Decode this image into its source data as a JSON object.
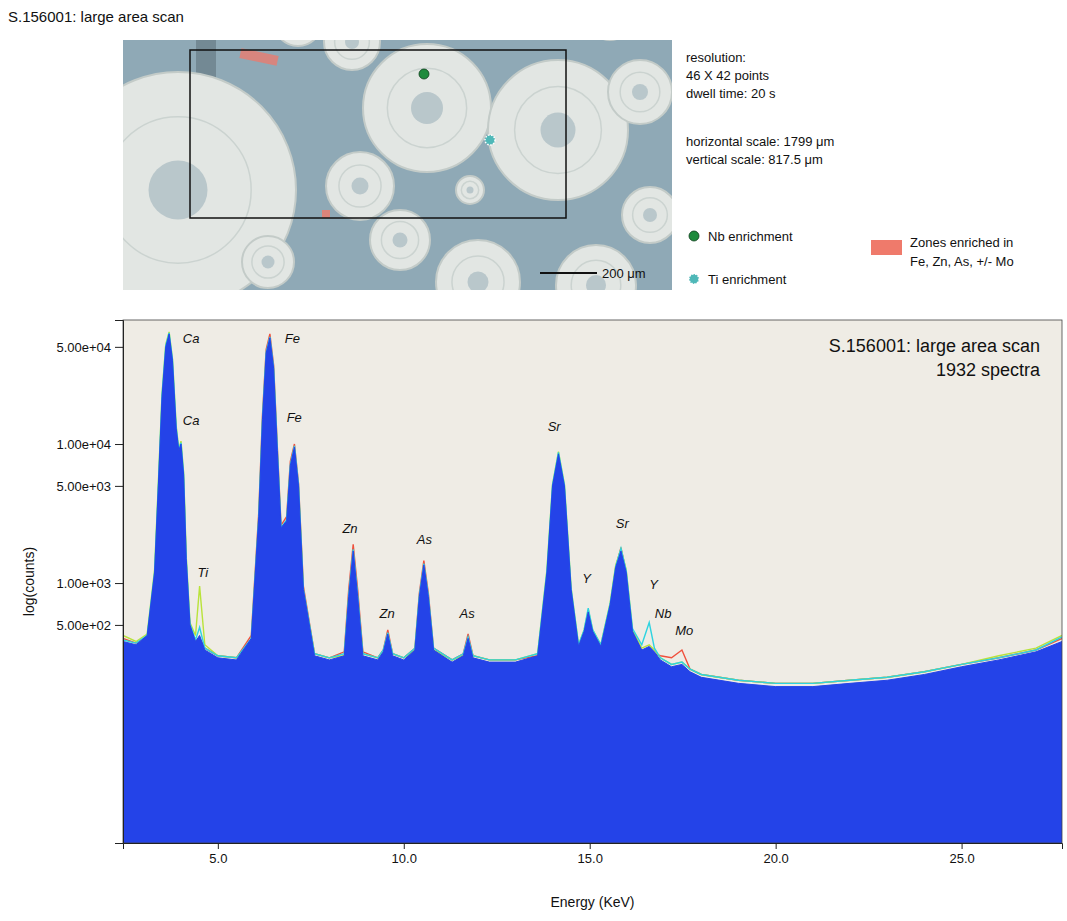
{
  "image_panel": {
    "title": "S.156001: large area scan",
    "info": [
      "resolution:",
      "46 X 42 points",
      "dwell time: 20 s"
    ],
    "scales": [
      "horizontal scale: 1799 μm",
      "vertical scale: 817.5 μm"
    ],
    "legend": [
      {
        "label": "Nb enrichment",
        "color": "#1e8a3c",
        "marker": "dot"
      },
      {
        "label": "Ti enrichment",
        "color": "#4fb8b8",
        "marker": "dotted-circle"
      }
    ],
    "zones": {
      "label": [
        "Zones enriched in",
        "Fe, Zn, As, +/- Mo"
      ],
      "color": "#ef7a6b"
    },
    "scale_bar": "200 μm"
  },
  "chart_data": {
    "type": "line",
    "log": "y",
    "grid": false,
    "title": "S.156001: large area scan",
    "subtitle": "1932 spectra",
    "x_label": "Energy (KeV)",
    "y_label": "log(counts)",
    "xlim": [
      2.45,
      27.7
    ],
    "ylim": [
      13.5,
      78000
    ],
    "xticks": [
      {
        "value": 5,
        "label": "5.0"
      },
      {
        "value": 10,
        "label": "10.0"
      },
      {
        "value": 15,
        "label": "15.0"
      },
      {
        "value": 20,
        "label": "20.0"
      },
      {
        "value": 25,
        "label": "25.0"
      }
    ],
    "yticks": [
      {
        "value": 500,
        "label": "5.00e+02"
      },
      {
        "value": 1000,
        "label": "1.00e+03"
      },
      {
        "value": 5000,
        "label": "5.00e+03"
      },
      {
        "value": 10000,
        "label": "1.00e+04"
      },
      {
        "value": 50000,
        "label": "5.00e+04"
      }
    ],
    "x": [
      2.45,
      2.8,
      3.1,
      3.3,
      3.4,
      3.5,
      3.6,
      3.69,
      3.78,
      3.88,
      3.95,
      4.01,
      4.08,
      4.15,
      4.25,
      4.4,
      4.51,
      4.65,
      5.0,
      5.5,
      5.9,
      6.1,
      6.2,
      6.3,
      6.4,
      6.5,
      6.6,
      6.7,
      6.85,
      6.95,
      7.06,
      7.17,
      7.3,
      7.6,
      8.0,
      8.4,
      8.52,
      8.64,
      8.76,
      8.9,
      9.3,
      9.45,
      9.57,
      9.7,
      10.0,
      10.3,
      10.42,
      10.54,
      10.66,
      10.8,
      11.3,
      11.6,
      11.73,
      11.86,
      12.3,
      13.0,
      13.6,
      13.85,
      14.0,
      14.16,
      14.32,
      14.5,
      14.7,
      14.85,
      14.96,
      15.08,
      15.3,
      15.55,
      15.7,
      15.84,
      15.98,
      16.15,
      16.4,
      16.6,
      16.74,
      16.9,
      17.2,
      17.48,
      17.7,
      18.0,
      19.0,
      20.0,
      21.0,
      22.0,
      23.0,
      24.0,
      25.0,
      26.0,
      27.0,
      27.7
    ],
    "series": [
      {
        "type": "line",
        "color": "#f0503c",
        "values": [
          400,
          370,
          410,
          1100,
          4500,
          20000,
          46000,
          56000,
          36000,
          12000,
          8500,
          9500,
          5500,
          1400,
          480,
          380,
          400,
          340,
          300,
          290,
          420,
          3200,
          16000,
          48000,
          62000,
          37000,
          9500,
          2600,
          3000,
          7500,
          10000,
          5200,
          950,
          310,
          290,
          320,
          900,
          1900,
          900,
          320,
          290,
          330,
          460,
          310,
          290,
          340,
          850,
          1450,
          850,
          340,
          280,
          310,
          430,
          300,
          280,
          280,
          300,
          1100,
          4600,
          8000,
          4700,
          850,
          340,
          430,
          600,
          440,
          340,
          680,
          1300,
          1800,
          1200,
          440,
          320,
          330,
          310,
          300,
          290,
          330,
          240,
          220,
          200,
          190,
          190,
          200,
          210,
          230,
          260,
          290,
          330,
          400
        ]
      },
      {
        "type": "line",
        "color": "#b9e33a",
        "values": [
          420,
          380,
          430,
          1250,
          5200,
          23000,
          52000,
          64000,
          41000,
          13500,
          9200,
          10500,
          6200,
          1550,
          520,
          420,
          950,
          360,
          300,
          290,
          380,
          2800,
          14000,
          42000,
          54000,
          33000,
          8500,
          2400,
          2700,
          6600,
          9000,
          4800,
          880,
          310,
          290,
          300,
          780,
          1650,
          780,
          310,
          290,
          320,
          420,
          310,
          290,
          330,
          780,
          1300,
          780,
          330,
          280,
          300,
          390,
          300,
          280,
          280,
          310,
          1250,
          5100,
          8800,
          5100,
          920,
          360,
          460,
          640,
          460,
          360,
          720,
          1350,
          1750,
          1250,
          460,
          340,
          360,
          330,
          290,
          260,
          270,
          240,
          220,
          200,
          190,
          190,
          200,
          210,
          230,
          260,
          300,
          340,
          420
        ]
      },
      {
        "type": "line",
        "color": "#2ed3e0",
        "values": [
          390,
          370,
          420,
          1200,
          5000,
          22500,
          51000,
          63000,
          40500,
          13200,
          9100,
          10200,
          6100,
          1500,
          510,
          390,
          480,
          340,
          300,
          290,
          400,
          3000,
          15000,
          46000,
          59000,
          35500,
          9100,
          2500,
          2850,
          7100,
          9700,
          5100,
          910,
          310,
          290,
          310,
          820,
          1750,
          820,
          310,
          290,
          330,
          440,
          310,
          290,
          340,
          820,
          1380,
          820,
          340,
          280,
          310,
          410,
          300,
          280,
          280,
          310,
          1220,
          5050,
          8700,
          5050,
          910,
          360,
          460,
          660,
          460,
          360,
          710,
          1320,
          1780,
          1230,
          470,
          360,
          520,
          340,
          290,
          260,
          270,
          240,
          220,
          200,
          190,
          190,
          200,
          210,
          230,
          260,
          290,
          330,
          410
        ]
      },
      {
        "type": "area",
        "color": "#2443e8",
        "values": [
          380,
          360,
          420,
          1200,
          5000,
          22000,
          50000,
          62000,
          40000,
          13000,
          9000,
          10000,
          6000,
          1500,
          500,
          380,
          420,
          330,
          290,
          280,
          400,
          3000,
          15000,
          45000,
          58000,
          35000,
          9000,
          2500,
          2800,
          7000,
          9500,
          5000,
          900,
          300,
          280,
          300,
          800,
          1700,
          800,
          300,
          280,
          320,
          430,
          300,
          280,
          330,
          800,
          1350,
          800,
          330,
          270,
          300,
          400,
          290,
          270,
          270,
          300,
          1200,
          5000,
          8500,
          5000,
          900,
          350,
          450,
          620,
          450,
          350,
          700,
          1300,
          1700,
          1200,
          450,
          330,
          350,
          320,
          280,
          250,
          260,
          230,
          210,
          190,
          180,
          180,
          190,
          200,
          220,
          250,
          280,
          320,
          380
        ]
      }
    ],
    "annotations": [
      {
        "text": "Ca",
        "x": 4.06,
        "y": 53000
      },
      {
        "text": "Ca",
        "x": 4.06,
        "y": 13700
      },
      {
        "text": "Ti",
        "x": 4.45,
        "y": 1100
      },
      {
        "text": "Fe",
        "x": 6.8,
        "y": 53000
      },
      {
        "text": "Fe",
        "x": 6.85,
        "y": 14500
      },
      {
        "text": "Zn",
        "x": 8.35,
        "y": 2300
      },
      {
        "text": "Zn",
        "x": 9.35,
        "y": 560
      },
      {
        "text": "As",
        "x": 10.35,
        "y": 1900
      },
      {
        "text": "As",
        "x": 11.5,
        "y": 560
      },
      {
        "text": "Sr",
        "x": 13.87,
        "y": 12500
      },
      {
        "text": "Y",
        "x": 14.8,
        "y": 1000
      },
      {
        "text": "Sr",
        "x": 15.7,
        "y": 2500
      },
      {
        "text": "Y",
        "x": 16.6,
        "y": 900
      },
      {
        "text": "Nb",
        "x": 16.75,
        "y": 560
      },
      {
        "text": "Mo",
        "x": 17.3,
        "y": 420
      }
    ]
  }
}
